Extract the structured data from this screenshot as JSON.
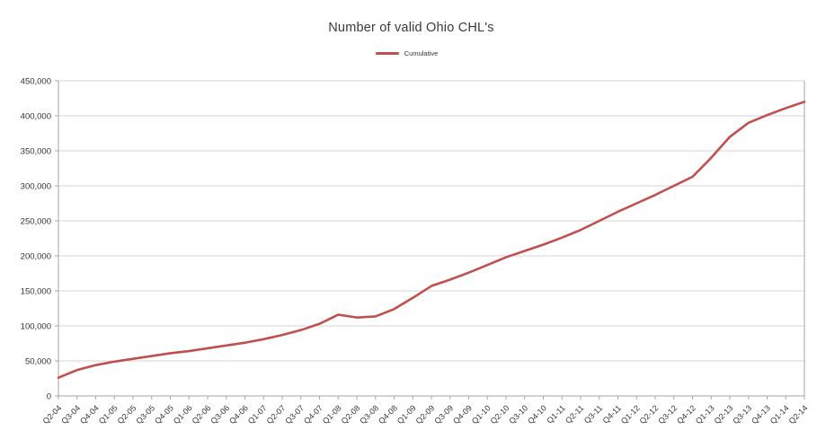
{
  "chart_data": {
    "type": "line",
    "title": "Number of valid Ohio CHL's",
    "legend_position": "top",
    "grid": "horizontal",
    "xlabel": "",
    "ylabel": "",
    "ylim": [
      0,
      450000
    ],
    "ytick_step": 50000,
    "ytick_labels": [
      "0",
      "50,000",
      "100,000",
      "150,000",
      "200,000",
      "250,000",
      "300,000",
      "350,000",
      "400,000",
      "450,000"
    ],
    "categories": [
      "Q2-04",
      "Q3-04",
      "Q4-04",
      "Q1-05",
      "Q2-05",
      "Q3-05",
      "Q4-05",
      "Q1-06",
      "Q2-06",
      "Q3-06",
      "Q4-06",
      "Q1-07",
      "Q2-07",
      "Q3-07",
      "Q4-07",
      "Q1-08",
      "Q2-08",
      "Q3-08",
      "Q4-08",
      "Q1-09",
      "Q2-09",
      "Q3-09",
      "Q4-09",
      "Q1-10",
      "Q2-10",
      "Q3-10",
      "Q4-10",
      "Q1-11",
      "Q2-11",
      "Q3-11",
      "Q4-11",
      "Q1-12",
      "Q2-12",
      "Q3-12",
      "Q4-12",
      "Q1-13",
      "Q2-13",
      "Q3-13",
      "Q4-13",
      "Q1-14",
      "Q2-14"
    ],
    "series": [
      {
        "name": "Cumulative",
        "color": "#c0504d",
        "values": [
          26000,
          37000,
          44000,
          49000,
          53000,
          57000,
          61000,
          64000,
          68000,
          72000,
          76000,
          81000,
          87000,
          94000,
          103000,
          116000,
          112000,
          113500,
          124000,
          140000,
          157000,
          166000,
          176000,
          187000,
          198000,
          207000,
          216000,
          226000,
          237000,
          250000,
          263000,
          275000,
          287000,
          300000,
          313000,
          340000,
          370000,
          390000,
          401000,
          411000,
          420000
        ]
      }
    ],
    "colors": {
      "series_line": "#c0504d",
      "gridline": "#d6d6d6",
      "axis": "#a6a6a6",
      "tick_label": "#333333",
      "title_text": "#3a3a3a",
      "background": "#ffffff"
    }
  }
}
